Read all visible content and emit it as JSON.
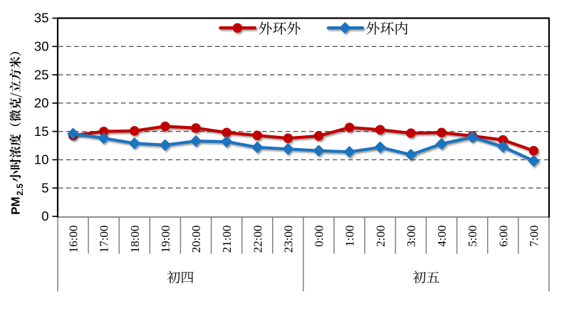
{
  "chart_data": {
    "type": "line",
    "ylabel": "PM2.5小时浓度（微克/立方米）",
    "ylabel_prefix": "PM",
    "ylabel_subscript": "2.5",
    "ylabel_cjk": "小时浓度（微克/立方米）",
    "ylim": [
      0,
      35
    ],
    "ytick_step": 5,
    "yticks": [
      "0",
      "5",
      "10",
      "15",
      "20",
      "25",
      "30",
      "35"
    ],
    "categories": [
      "16:00",
      "17:00",
      "18:00",
      "19:00",
      "20:00",
      "21:00",
      "22:00",
      "23:00",
      "0:00",
      "1:00",
      "2:00",
      "3:00",
      "4:00",
      "5:00",
      "6:00",
      "7:00"
    ],
    "category_groups": [
      {
        "label": "初四",
        "from": 0,
        "to": 7
      },
      {
        "label": "初五",
        "from": 8,
        "to": 15
      }
    ],
    "series": [
      {
        "name": "外环外",
        "color": "#c00000",
        "marker": "circle",
        "values": [
          14.3,
          15.0,
          15.1,
          15.9,
          15.6,
          14.8,
          14.3,
          13.8,
          14.2,
          15.7,
          15.3,
          14.7,
          14.8,
          14.2,
          13.5,
          11.6
        ]
      },
      {
        "name": "外环内",
        "color": "#1e73be",
        "marker": "diamond",
        "values": [
          14.6,
          13.8,
          12.9,
          12.6,
          13.3,
          13.2,
          12.2,
          11.9,
          11.6,
          11.4,
          12.2,
          10.9,
          12.8,
          14.0,
          12.3,
          9.8
        ]
      }
    ],
    "grid": {
      "horizontal": true,
      "style": "dashed",
      "color": "#595959"
    },
    "legend": {
      "position": "top-center-inside"
    }
  }
}
